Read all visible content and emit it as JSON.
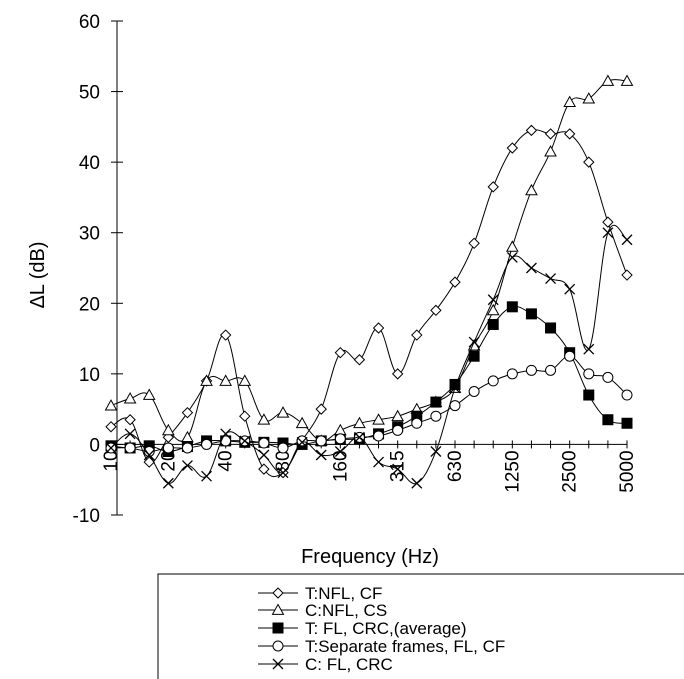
{
  "chart_data": {
    "type": "line",
    "xlabel": "Frequency (Hz)",
    "ylabel": "ΔL (dB)",
    "ylim": [
      -10,
      60
    ],
    "yticks": [
      -10,
      0,
      10,
      20,
      30,
      40,
      50,
      60
    ],
    "x_tick_labels": [
      "10",
      "20",
      "40",
      "80",
      "160",
      "315",
      "630",
      "1250",
      "2500",
      "5000"
    ],
    "x_points": [
      "10",
      "12.5",
      "16",
      "20",
      "25",
      "31.5",
      "40",
      "50",
      "63",
      "80",
      "100",
      "125",
      "160",
      "200",
      "250",
      "315",
      "400",
      "500",
      "630",
      "800",
      "1000",
      "1250",
      "1600",
      "2000",
      "2500",
      "3150",
      "4000",
      "5000"
    ],
    "legend_position": "bottom",
    "series": [
      {
        "name": "T:NFL, CF",
        "marker": "diamond",
        "values": [
          2.5,
          3.5,
          -2.5,
          1,
          4.5,
          9,
          15.5,
          4,
          -3.5,
          -4,
          0.5,
          5,
          13,
          12,
          16.5,
          10,
          15.5,
          19,
          23,
          28.5,
          36.5,
          42,
          44.5,
          44,
          44,
          40,
          31.5,
          24
        ]
      },
      {
        "name": "C:NFL, CS",
        "marker": "triangle",
        "values": [
          5.5,
          6.5,
          7,
          2,
          1,
          9,
          9,
          9,
          3.5,
          4.5,
          3,
          0.5,
          2,
          3,
          3.5,
          4,
          5,
          6,
          8,
          14,
          19,
          28,
          36,
          41.5,
          48.5,
          49,
          51.5,
          51.5
        ]
      },
      {
        "name": "T: FL, CRC,(average)",
        "marker": "filled-square",
        "values": [
          -0.2,
          -0.5,
          -0.2,
          -1,
          -0.3,
          0.5,
          0.5,
          0.3,
          0.3,
          0.2,
          0,
          0.5,
          0.7,
          0.8,
          1.5,
          2.5,
          4,
          6,
          8.5,
          12.5,
          17,
          19.5,
          18.5,
          16.5,
          13,
          7,
          3.5,
          3
        ]
      },
      {
        "name": "T:Separate frames, FL, CF",
        "marker": "circle",
        "values": [
          -0.5,
          -0.5,
          -1,
          -0.5,
          -0.5,
          0,
          0.5,
          0.5,
          0.2,
          -0.5,
          0.5,
          0.5,
          0.8,
          1,
          1.2,
          2,
          3,
          4,
          5.5,
          7.5,
          9,
          10,
          10.5,
          10.5,
          12.5,
          10,
          9.5,
          7
        ]
      },
      {
        "name": "C: FL, CRC",
        "marker": "x",
        "values": [
          -0.5,
          1.5,
          -1.5,
          -5.5,
          -3,
          -4.5,
          1.5,
          0.5,
          -1.5,
          -4,
          0.3,
          -1.5,
          -1,
          1,
          -2.5,
          -3.5,
          -5.5,
          -1,
          8,
          14.5,
          20.5,
          26.5,
          25,
          23.5,
          22,
          13.5,
          30,
          29
        ]
      }
    ]
  }
}
